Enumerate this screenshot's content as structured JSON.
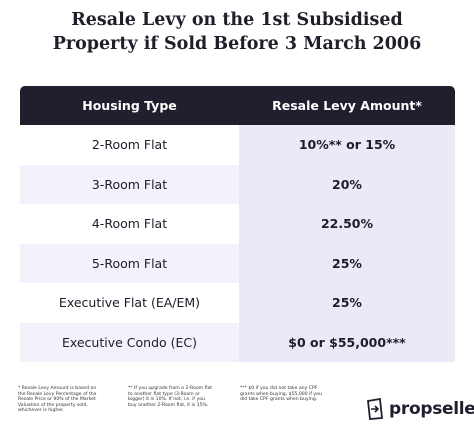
{
  "header": {
    "title": [
      "Resale Levy on the 1st Subsidised",
      "Property if Sold Before 3 March 2006"
    ]
  },
  "table": {
    "columns": [
      "Housing Type",
      "Resale Levy Amount*"
    ],
    "rows": [
      [
        "2-Room Flat",
        "10%** or 15%"
      ],
      [
        "3-Room Flat",
        "20%"
      ],
      [
        "4-Room Flat",
        "22.50%"
      ],
      [
        "5-Room Flat",
        "25%"
      ],
      [
        "Executive Flat (EA/EM)",
        "25%"
      ],
      [
        "Executive Condo (EC)",
        "$0 or $55,000***"
      ]
    ]
  },
  "footnotes": [
    "* Resale Levy Amount is based on the Resale Levy Percentage of the Resale Price or 90% of the Market Valuation of the property sold, whichever is higher.",
    "** If you upgrade from a 2-Room flat to another flat type (3-Room or bigger) it is 10%. If not, i.e. if you buy another 2-Room flat, it is 15%.",
    "*** $0 if you did not take any CPF grants when buying, $55,000 if you did take CPF grants when buying."
  ],
  "logo": "propseller"
}
